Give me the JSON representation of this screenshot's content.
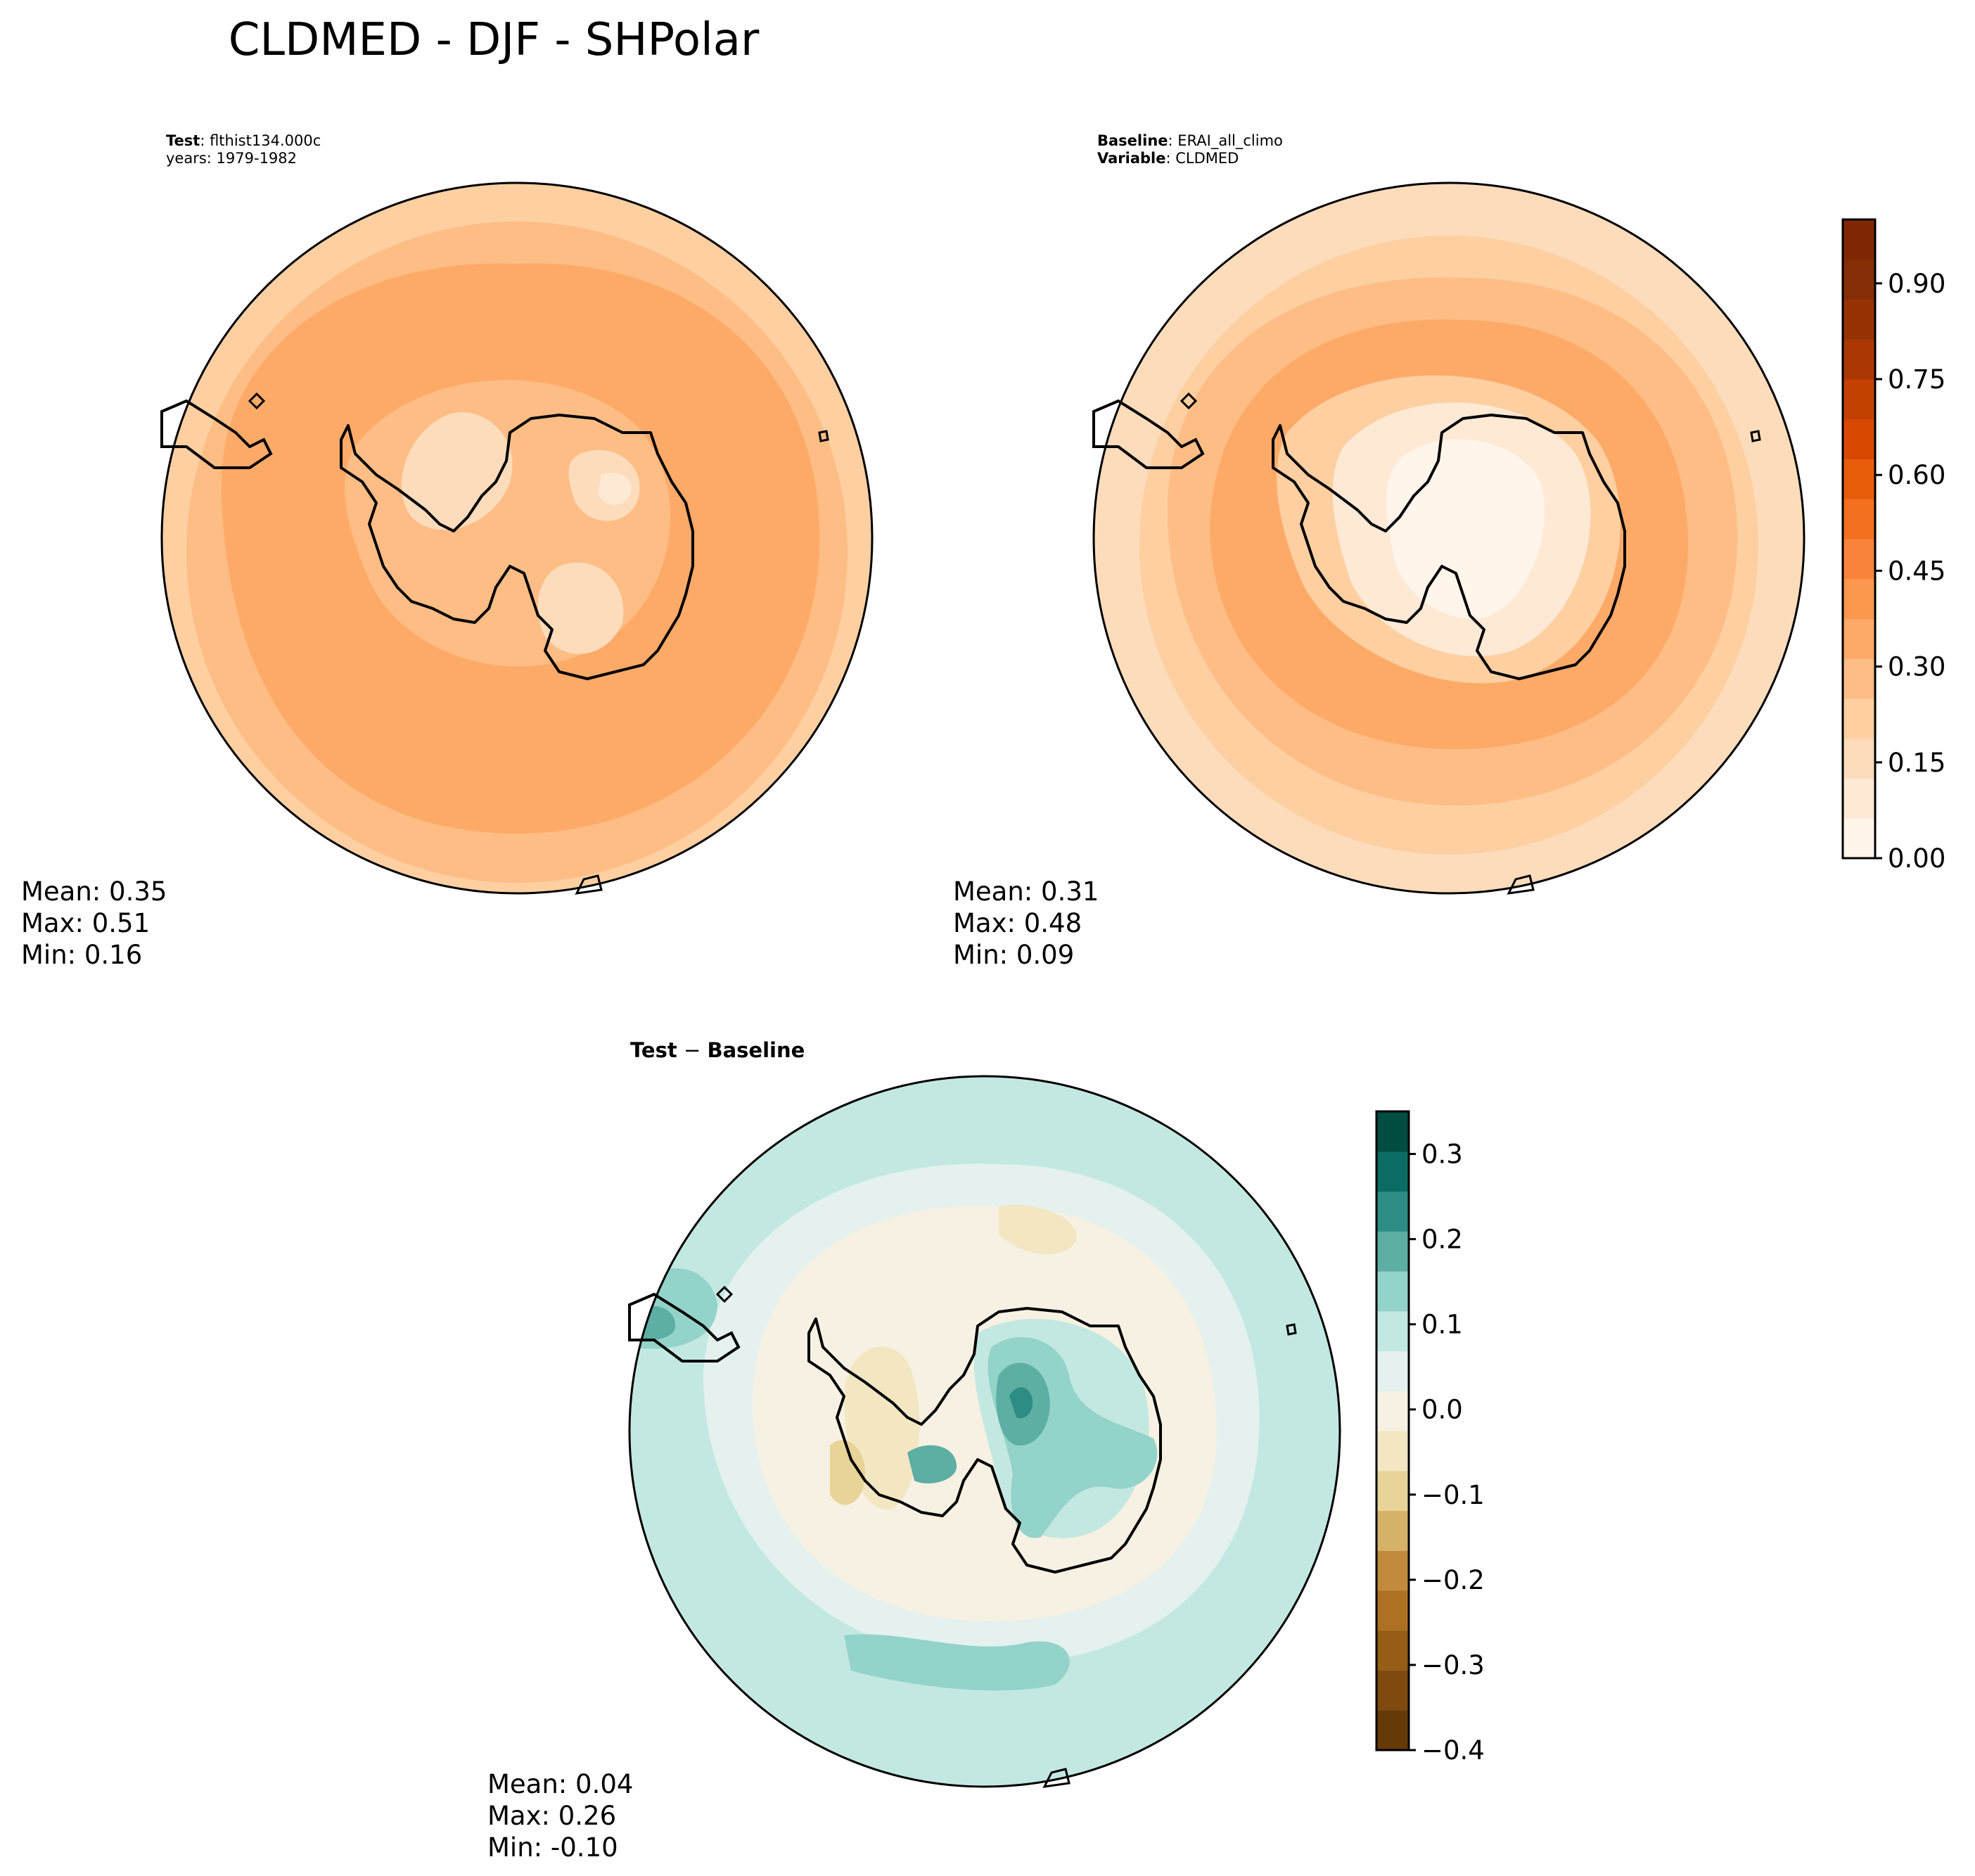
{
  "title": "CLDMED - DJF - SHPolar",
  "panels": {
    "test": {
      "meta_line1_label": "Test",
      "meta_line1_value": ": flthist134.000c",
      "meta_line2": "years: 1979-1982",
      "stats": {
        "mean": "Mean:  0.35",
        "max": "Max:  0.51",
        "min": "Min:  0.16"
      }
    },
    "baseline": {
      "meta_line1_label": "Baseline",
      "meta_line1_value": ": ERAI_all_climo",
      "meta_line2_label": "Variable",
      "meta_line2_value": ": CLDMED",
      "stats": {
        "mean": "Mean:  0.31",
        "max": "Max:  0.48",
        "min": "Min:  0.09"
      }
    },
    "diff": {
      "title_a": "Test",
      "title_sep": " − ",
      "title_b": "Baseline",
      "stats": {
        "mean": "Mean:  0.04",
        "max": "Max:  0.26",
        "min": "Min: -0.10"
      }
    }
  },
  "colorbar_main": {
    "colormap": "Oranges",
    "range": [
      0.0,
      1.0
    ],
    "ticks": [
      "0.00",
      "0.15",
      "0.30",
      "0.45",
      "0.60",
      "0.75",
      "0.90"
    ],
    "colors": [
      "#fff5eb",
      "#fee9d5",
      "#fddcbb",
      "#fdcfa1",
      "#fdbd85",
      "#fdaa68",
      "#fd974e",
      "#f9833a",
      "#f2701f",
      "#e85d0c",
      "#d94801",
      "#c24002",
      "#ab3803",
      "#973204",
      "#852e05",
      "#7f2704"
    ]
  },
  "colorbar_diff": {
    "colormap": "BrBG",
    "range": [
      -0.4,
      0.35
    ],
    "ticks": [
      "−0.4",
      "−0.3",
      "−0.2",
      "−0.1",
      "0.0",
      "0.1",
      "0.2",
      "0.3"
    ],
    "colors": [
      "#653a08",
      "#7e4a0f",
      "#955d16",
      "#ae7124",
      "#c18a3d",
      "#d6b268",
      "#e8d398",
      "#f3e7c3",
      "#f6f1e2",
      "#e4f1ef",
      "#c3e8e2",
      "#93d3c9",
      "#5daea3",
      "#2d8c84",
      "#0b6c63",
      "#004d42"
    ]
  }
}
